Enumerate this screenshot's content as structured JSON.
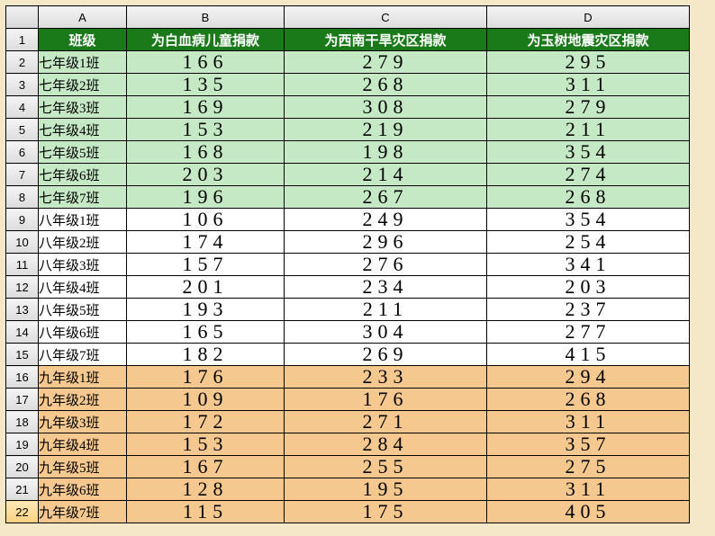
{
  "colLetters": [
    "A",
    "B",
    "C",
    "D"
  ],
  "headers": {
    "class": "班级",
    "b": "为白血病儿童捐款",
    "c": "为西南干旱灾区捐款",
    "d": "为玉树地震灾区捐款"
  },
  "colors": {
    "header_bg": "#1a7a1a",
    "header_fg": "#ffffff",
    "g7_bg": "#c5e8c5",
    "g8_bg": "#ffffff",
    "g9_bg": "#f5c890",
    "page_bg": "#f5e8c8"
  },
  "rows": [
    {
      "n": 2,
      "cls": "七年级1班",
      "b": 166,
      "c": 279,
      "d": 295,
      "bg": "g7"
    },
    {
      "n": 3,
      "cls": "七年级2班",
      "b": 135,
      "c": 268,
      "d": 311,
      "bg": "g7"
    },
    {
      "n": 4,
      "cls": "七年级3班",
      "b": 169,
      "c": 308,
      "d": 279,
      "bg": "g7"
    },
    {
      "n": 5,
      "cls": "七年级4班",
      "b": 153,
      "c": 219,
      "d": 211,
      "bg": "g7"
    },
    {
      "n": 6,
      "cls": "七年级5班",
      "b": 168,
      "c": 198,
      "d": 354,
      "bg": "g7"
    },
    {
      "n": 7,
      "cls": "七年级6班",
      "b": 203,
      "c": 214,
      "d": 274,
      "bg": "g7"
    },
    {
      "n": 8,
      "cls": "七年级7班",
      "b": 196,
      "c": 267,
      "d": 268,
      "bg": "g7"
    },
    {
      "n": 9,
      "cls": "八年级1班",
      "b": 106,
      "c": 249,
      "d": 354,
      "bg": "g8"
    },
    {
      "n": 10,
      "cls": "八年级2班",
      "b": 174,
      "c": 296,
      "d": 254,
      "bg": "g8"
    },
    {
      "n": 11,
      "cls": "八年级3班",
      "b": 157,
      "c": 276,
      "d": 341,
      "bg": "g8"
    },
    {
      "n": 12,
      "cls": "八年级4班",
      "b": 201,
      "c": 234,
      "d": 203,
      "bg": "g8"
    },
    {
      "n": 13,
      "cls": "八年级5班",
      "b": 193,
      "c": 211,
      "d": 237,
      "bg": "g8"
    },
    {
      "n": 14,
      "cls": "八年级6班",
      "b": 165,
      "c": 304,
      "d": 277,
      "bg": "g8"
    },
    {
      "n": 15,
      "cls": "八年级7班",
      "b": 182,
      "c": 269,
      "d": 415,
      "bg": "g8"
    },
    {
      "n": 16,
      "cls": "九年级1班",
      "b": 176,
      "c": 233,
      "d": 294,
      "bg": "g9"
    },
    {
      "n": 17,
      "cls": "九年级2班",
      "b": 109,
      "c": 176,
      "d": 268,
      "bg": "g9"
    },
    {
      "n": 18,
      "cls": "九年级3班",
      "b": 172,
      "c": 271,
      "d": 311,
      "bg": "g9"
    },
    {
      "n": 19,
      "cls": "九年级4班",
      "b": 153,
      "c": 284,
      "d": 357,
      "bg": "g9"
    },
    {
      "n": 20,
      "cls": "九年级5班",
      "b": 167,
      "c": 255,
      "d": 275,
      "bg": "g9"
    },
    {
      "n": 21,
      "cls": "九年级6班",
      "b": 128,
      "c": 195,
      "d": 311,
      "bg": "g9"
    },
    {
      "n": 22,
      "cls": "九年级7班",
      "b": 115,
      "c": 175,
      "d": 405,
      "bg": "g9"
    }
  ],
  "selectedRow": 22
}
